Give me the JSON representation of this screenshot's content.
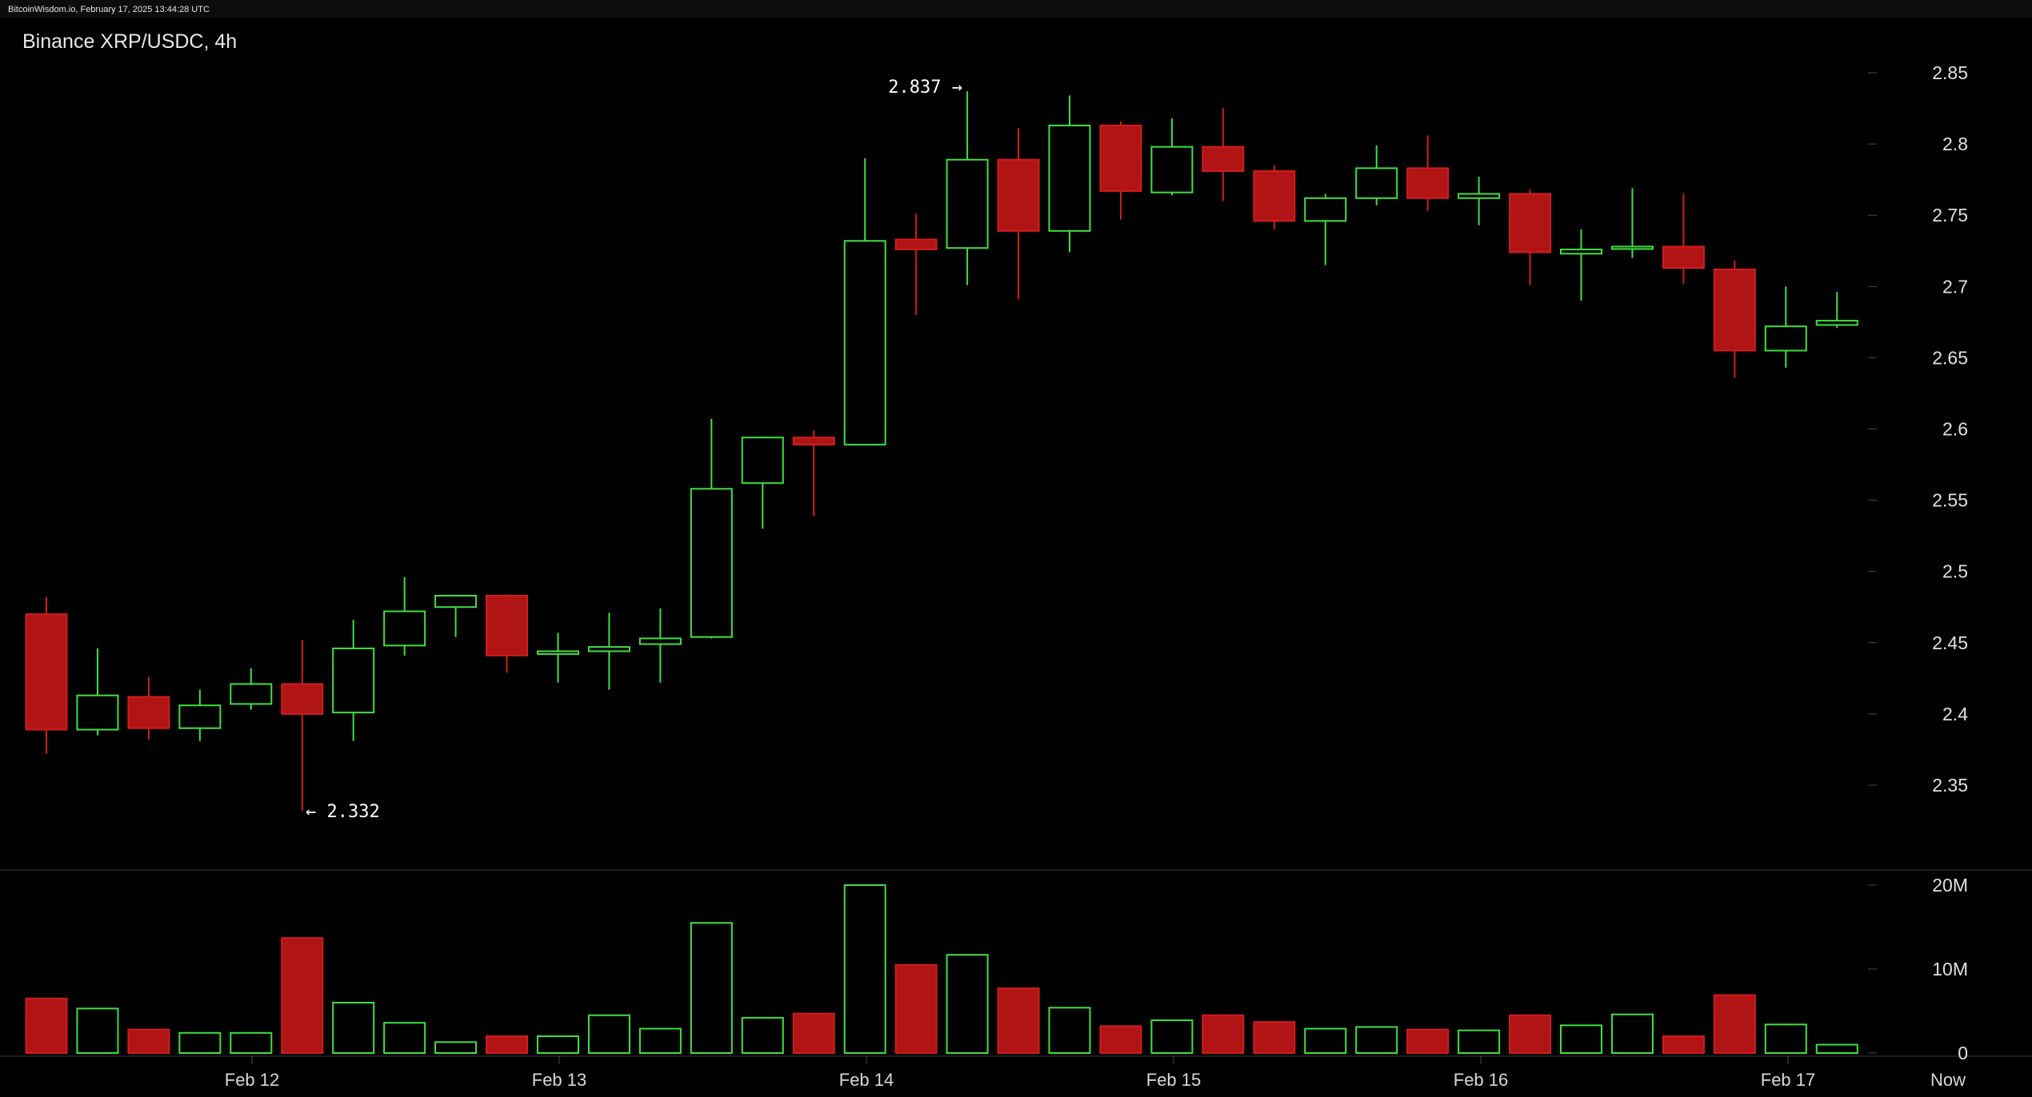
{
  "watermark": "BitcoinWisdom.io, February 17, 2025 13:44:28 UTC",
  "chart_data": {
    "type": "candlestick",
    "title": "Binance XRP/USDC, 4h",
    "ylim": [
      2.3,
      2.88
    ],
    "yticks": [
      "2.35",
      "2.4",
      "2.45",
      "2.5",
      "2.55",
      "2.6",
      "2.65",
      "2.7",
      "2.75",
      "2.8",
      "2.85"
    ],
    "volume_ticks": [
      "0",
      "10M",
      "20M"
    ],
    "volume_max": 20,
    "x_labels": [
      "Feb 12",
      "Feb 13",
      "Feb 14",
      "Feb 15",
      "Feb 16",
      "Feb 17",
      "Now"
    ],
    "annotations": [
      {
        "label": "2.837 →",
        "value": 2.837
      },
      {
        "label": "← 2.332",
        "value": 2.332
      }
    ],
    "colors": {
      "up": "#3fe03f",
      "down": "#b01414",
      "down_stroke": "#d21d1d"
    },
    "candles": [
      {
        "o": 2.47,
        "h": 2.482,
        "l": 2.372,
        "c": 2.389,
        "v": 6.5
      },
      {
        "o": 2.389,
        "h": 2.446,
        "l": 2.385,
        "c": 2.413,
        "v": 5.3
      },
      {
        "o": 2.412,
        "h": 2.426,
        "l": 2.382,
        "c": 2.39,
        "v": 2.8
      },
      {
        "o": 2.39,
        "h": 2.417,
        "l": 2.381,
        "c": 2.406,
        "v": 2.4
      },
      {
        "o": 2.407,
        "h": 2.432,
        "l": 2.403,
        "c": 2.421,
        "v": 2.4
      },
      {
        "o": 2.421,
        "h": 2.452,
        "l": 2.332,
        "c": 2.4,
        "v": 13.7
      },
      {
        "o": 2.401,
        "h": 2.466,
        "l": 2.381,
        "c": 2.446,
        "v": 6.0
      },
      {
        "o": 2.448,
        "h": 2.496,
        "l": 2.441,
        "c": 2.472,
        "v": 3.6
      },
      {
        "o": 2.475,
        "h": 2.483,
        "l": 2.454,
        "c": 2.483,
        "v": 1.3
      },
      {
        "o": 2.483,
        "h": 2.484,
        "l": 2.429,
        "c": 2.441,
        "v": 2.0
      },
      {
        "o": 2.442,
        "h": 2.457,
        "l": 2.422,
        "c": 2.444,
        "v": 2.0
      },
      {
        "o": 2.444,
        "h": 2.471,
        "l": 2.417,
        "c": 2.447,
        "v": 4.5
      },
      {
        "o": 2.449,
        "h": 2.474,
        "l": 2.422,
        "c": 2.453,
        "v": 2.9
      },
      {
        "o": 2.454,
        "h": 2.607,
        "l": 2.453,
        "c": 2.558,
        "v": 15.5
      },
      {
        "o": 2.562,
        "h": 2.594,
        "l": 2.53,
        "c": 2.594,
        "v": 4.2
      },
      {
        "o": 2.594,
        "h": 2.599,
        "l": 2.539,
        "c": 2.589,
        "v": 4.7
      },
      {
        "o": 2.589,
        "h": 2.79,
        "l": 2.589,
        "c": 2.732,
        "v": 20.0
      },
      {
        "o": 2.733,
        "h": 2.751,
        "l": 2.68,
        "c": 2.726,
        "v": 10.5
      },
      {
        "o": 2.727,
        "h": 2.837,
        "l": 2.701,
        "c": 2.789,
        "v": 11.7
      },
      {
        "o": 2.789,
        "h": 2.811,
        "l": 2.691,
        "c": 2.739,
        "v": 7.7
      },
      {
        "o": 2.739,
        "h": 2.834,
        "l": 2.724,
        "c": 2.813,
        "v": 5.4
      },
      {
        "o": 2.813,
        "h": 2.816,
        "l": 2.747,
        "c": 2.767,
        "v": 3.2
      },
      {
        "o": 2.766,
        "h": 2.818,
        "l": 2.764,
        "c": 2.798,
        "v": 3.9
      },
      {
        "o": 2.798,
        "h": 2.825,
        "l": 2.76,
        "c": 2.781,
        "v": 4.5
      },
      {
        "o": 2.781,
        "h": 2.785,
        "l": 2.74,
        "c": 2.746,
        "v": 3.7
      },
      {
        "o": 2.746,
        "h": 2.765,
        "l": 2.715,
        "c": 2.762,
        "v": 2.9
      },
      {
        "o": 2.762,
        "h": 2.799,
        "l": 2.757,
        "c": 2.783,
        "v": 3.1
      },
      {
        "o": 2.783,
        "h": 2.806,
        "l": 2.753,
        "c": 2.762,
        "v": 2.8
      },
      {
        "o": 2.762,
        "h": 2.777,
        "l": 2.743,
        "c": 2.765,
        "v": 2.7
      },
      {
        "o": 2.765,
        "h": 2.768,
        "l": 2.701,
        "c": 2.724,
        "v": 4.5
      },
      {
        "o": 2.723,
        "h": 2.74,
        "l": 2.69,
        "c": 2.726,
        "v": 3.3
      },
      {
        "o": 2.727,
        "h": 2.769,
        "l": 2.72,
        "c": 2.728,
        "v": 4.6
      },
      {
        "o": 2.728,
        "h": 2.765,
        "l": 2.702,
        "c": 2.713,
        "v": 2.0
      },
      {
        "o": 2.712,
        "h": 2.718,
        "l": 2.636,
        "c": 2.655,
        "v": 6.9
      },
      {
        "o": 2.655,
        "h": 2.7,
        "l": 2.643,
        "c": 2.672,
        "v": 3.4
      },
      {
        "o": 2.673,
        "h": 2.696,
        "l": 2.671,
        "c": 2.676,
        "v": 1.0
      }
    ]
  }
}
